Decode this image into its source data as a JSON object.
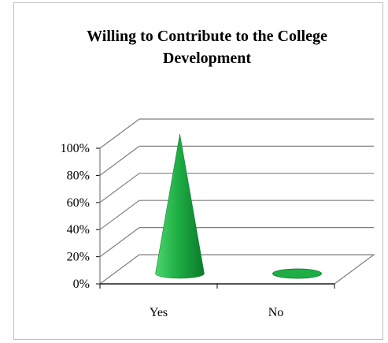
{
  "chart_data": {
    "type": "bar",
    "style": "3d-cone",
    "title_lines": [
      "Willing to Contribute to the College",
      "Development"
    ],
    "categories": [
      "Yes",
      "No"
    ],
    "values": [
      100,
      0
    ],
    "ylim": [
      0,
      100
    ],
    "yticks": [
      "0%",
      "20%",
      "40%",
      "60%",
      "80%",
      "100%"
    ],
    "grid": true,
    "legend": "none",
    "colors": {
      "cone_light": "#4bd66b",
      "cone_mid": "#1fae45",
      "cone_dark": "#0b7a2a",
      "grid": "#7f7f7f"
    }
  }
}
